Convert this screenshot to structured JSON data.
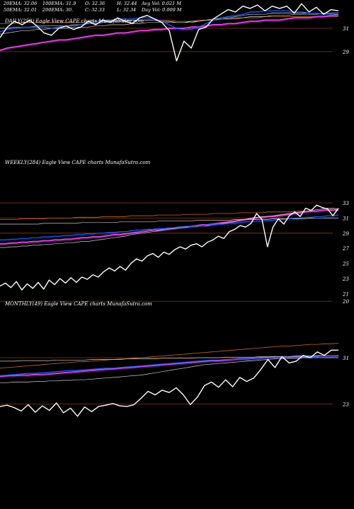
{
  "stats": {
    "row1": [
      "20EMA: 32.06",
      "100EMA: 31.9",
      "O: 32.36",
      "H: 32.44",
      "Avg Vol: 0.021 M"
    ],
    "row2": [
      "50EMA: 32.01",
      "200EMA: 30.",
      "C: 32.33",
      "L: 32.34",
      "Day Vol: 0.009 M"
    ]
  },
  "colors": {
    "background": "#000000",
    "price": "#ffffff",
    "ema_short": "#1f5fff",
    "ema_mid": "#cfcfcf",
    "ema_long": "#e040e0",
    "ema_orange": "#cc6a1a",
    "gridline": "#8a3a12"
  },
  "chart_data": [
    {
      "type": "line",
      "title": "DAILY(250) Eagle  View  CAPE charts MunafaSutra.com",
      "yticks": [
        31,
        29
      ],
      "gridlines": [
        31,
        29
      ],
      "series": [
        {
          "values": [
            30.2,
            31.1,
            31.6,
            31.3,
            31.7,
            31.2,
            30.6,
            30.4,
            31.0,
            31.2,
            30.9,
            31.1,
            31.6,
            31.3,
            31.7,
            31.5,
            31.9,
            31.6,
            31.4,
            31.9,
            32.1,
            31.8,
            31.5,
            30.8,
            28.2,
            29.9,
            29.3,
            30.9,
            31.1,
            31.8,
            32.2,
            32.6,
            32.4,
            32.9,
            32.7,
            33.0,
            32.5,
            32.9,
            32.7,
            32.9,
            32.3,
            33.1,
            32.4,
            32.8,
            32.2,
            32.6,
            32.5
          ]
        },
        {
          "values": [
            30.7,
            30.9,
            31.0,
            31.1,
            31.1,
            31.1,
            31.1,
            31.0,
            31.1,
            31.2,
            31.2,
            31.3,
            31.5,
            31.6,
            31.7,
            31.7,
            31.8,
            31.8,
            31.8,
            31.9,
            31.9,
            31.8,
            31.6,
            31.3,
            31.0,
            30.9,
            30.9,
            31.1,
            31.4,
            31.7,
            31.9,
            32.0,
            32.1,
            32.2,
            32.4,
            32.4,
            32.5,
            32.5,
            32.5,
            32.5,
            32.4,
            32.4,
            32.3,
            32.3,
            32.2,
            32.2,
            32.1
          ]
        },
        {
          "values": [
            31.0,
            31.0,
            31.1,
            31.1,
            31.1,
            31.2,
            31.2,
            31.2,
            31.2,
            31.2,
            31.3,
            31.3,
            31.4,
            31.4,
            31.5,
            31.6,
            31.6,
            31.6,
            31.7,
            31.7,
            31.7,
            31.7,
            31.6,
            31.6,
            31.5,
            31.5,
            31.5,
            31.6,
            31.7,
            31.8,
            31.9,
            31.9,
            32.0,
            32.1,
            32.2,
            32.2,
            32.2,
            32.3,
            32.3,
            32.3,
            32.3,
            32.3,
            32.3,
            32.3,
            32.2,
            32.2,
            32.2
          ]
        },
        {
          "values": [
            31.4,
            31.4,
            31.4,
            31.5,
            31.5,
            31.5,
            31.5,
            31.5,
            31.5,
            31.5,
            31.5,
            31.5,
            31.6,
            31.6,
            31.6,
            31.6,
            31.7,
            31.7,
            31.7,
            31.7,
            31.7,
            31.7,
            31.7,
            31.7,
            31.6,
            31.6,
            31.6,
            31.7,
            31.7,
            31.7,
            31.8,
            31.8,
            31.8,
            31.9,
            31.9,
            31.9,
            32.0,
            32.0,
            32.0,
            32.0,
            32.0,
            32.0,
            32.0,
            32.0,
            32.0,
            32.0,
            32.0
          ]
        },
        {
          "values": [
            30.5,
            30.6,
            30.7,
            30.8,
            30.8,
            30.9,
            30.9,
            31.0,
            31.0,
            31.0,
            31.1,
            31.1,
            31.1,
            31.2,
            31.2,
            31.3,
            31.3,
            31.3,
            31.4,
            31.4,
            31.5,
            31.5,
            31.5,
            31.5,
            31.5,
            31.5,
            31.6,
            31.6,
            31.7,
            31.7,
            31.8,
            31.8,
            31.9,
            31.9,
            32.0,
            32.0,
            32.0,
            32.1,
            32.1,
            32.1,
            32.2,
            32.2,
            32.2,
            32.2,
            32.3,
            32.3,
            32.3
          ]
        },
        {
          "values": [
            29.1,
            29.3,
            29.4,
            29.5,
            29.6,
            29.7,
            29.8,
            29.9,
            30.0,
            30.0,
            30.1,
            30.2,
            30.3,
            30.4,
            30.4,
            30.5,
            30.6,
            30.6,
            30.7,
            30.8,
            30.8,
            30.9,
            30.9,
            31.0,
            31.0,
            31.0,
            31.1,
            31.1,
            31.2,
            31.3,
            31.3,
            31.4,
            31.4,
            31.5,
            31.6,
            31.6,
            31.7,
            31.7,
            31.7,
            31.8,
            31.9,
            31.9,
            31.9,
            32.0,
            32.0,
            32.1,
            32.1
          ]
        }
      ]
    },
    {
      "type": "line",
      "title": "WEEKLY(284) Eagle  View  CAPE charts MunafaSutra.com",
      "yticks": [
        33,
        31,
        29,
        27,
        25,
        23,
        21,
        20
      ],
      "gridlines": [
        33,
        31,
        29,
        20
      ],
      "series": [
        {
          "values": [
            22.0,
            22.4,
            21.8,
            22.6,
            21.5,
            22.3,
            21.7,
            22.5,
            21.6,
            22.8,
            22.2,
            23.0,
            22.4,
            23.1,
            22.5,
            23.2,
            22.9,
            23.5,
            23.2,
            23.9,
            24.4,
            24.0,
            24.6,
            24.1,
            25.0,
            25.6,
            25.3,
            26.0,
            26.3,
            25.8,
            26.5,
            26.2,
            26.8,
            27.2,
            26.9,
            27.4,
            27.6,
            27.2,
            27.8,
            28.1,
            28.6,
            28.3,
            29.2,
            29.5,
            30.0,
            29.8,
            30.3,
            31.6,
            30.8,
            27.2,
            29.8,
            30.9,
            30.2,
            31.3,
            31.8,
            31.2,
            32.3,
            32.0,
            32.7,
            32.4,
            32.2,
            31.3,
            32.3
          ]
        },
        {
          "values": [
            28.1,
            28.1,
            28.2,
            28.2,
            28.3,
            28.3,
            28.4,
            28.4,
            28.5,
            28.5,
            28.6,
            28.6,
            28.7,
            28.7,
            28.8,
            28.8,
            28.9,
            28.9,
            29.0,
            29.0,
            29.1,
            29.1,
            29.2,
            29.2,
            29.3,
            29.4,
            29.4,
            29.5,
            29.5,
            29.6,
            29.6,
            29.7,
            29.7,
            29.8,
            29.9,
            29.9,
            30.0,
            30.0,
            30.1,
            30.1,
            30.2,
            30.2,
            30.3,
            30.3,
            30.4,
            30.5,
            30.5,
            30.6,
            30.6,
            30.7,
            30.7,
            30.8,
            30.8,
            30.9,
            31.0,
            31.0,
            31.1,
            31.1,
            31.2,
            31.2,
            31.3,
            31.3,
            31.4
          ]
        },
        {
          "values": [
            30.2,
            30.2,
            30.2,
            30.2,
            30.2,
            30.2,
            30.2,
            30.2,
            30.3,
            30.3,
            30.3,
            30.3,
            30.3,
            30.3,
            30.3,
            30.4,
            30.4,
            30.4,
            30.4,
            30.4,
            30.4,
            30.4,
            30.5,
            30.5,
            30.5,
            30.5,
            30.5,
            30.5,
            30.5,
            30.6,
            30.6,
            30.6,
            30.6,
            30.6,
            30.6,
            30.6,
            30.7,
            30.7,
            30.7,
            30.7,
            30.7,
            30.7,
            30.7,
            30.8,
            30.8,
            30.8,
            30.8,
            30.8,
            30.8,
            30.8,
            30.9,
            30.9,
            30.9,
            30.9,
            30.9,
            30.9,
            30.9,
            31.0,
            31.0,
            31.0,
            31.0,
            31.0,
            31.0
          ]
        },
        {
          "values": [
            30.8,
            30.8,
            30.8,
            30.8,
            30.9,
            30.9,
            30.9,
            30.9,
            30.9,
            31.0,
            31.0,
            31.0,
            31.0,
            31.0,
            31.1,
            31.1,
            31.1,
            31.1,
            31.1,
            31.2,
            31.2,
            31.2,
            31.2,
            31.2,
            31.3,
            31.3,
            31.3,
            31.3,
            31.3,
            31.4,
            31.4,
            31.4,
            31.4,
            31.4,
            31.5,
            31.5,
            31.5,
            31.5,
            31.5,
            31.6,
            31.6,
            31.6,
            31.6,
            31.6,
            31.7,
            31.7,
            31.7,
            31.7,
            31.7,
            31.8,
            31.8,
            31.8,
            31.8,
            31.8,
            31.9,
            31.9,
            31.9,
            31.9,
            31.9,
            32.0,
            32.0,
            32.0,
            32.0
          ]
        },
        {
          "values": [
            27.1,
            27.1,
            27.2,
            27.2,
            27.3,
            27.3,
            27.4,
            27.4,
            27.5,
            27.5,
            27.6,
            27.6,
            27.7,
            27.7,
            27.8,
            27.9,
            27.9,
            28.0,
            28.1,
            28.2,
            28.3,
            28.4,
            28.5,
            28.6,
            28.8,
            28.9,
            29.0,
            29.1,
            29.2,
            29.3,
            29.4,
            29.5,
            29.6,
            29.7,
            29.8,
            29.9,
            29.9,
            30.0,
            30.0,
            30.1,
            30.2,
            30.3,
            30.4,
            30.5,
            30.7,
            30.8,
            31.0,
            31.1,
            31.2,
            31.2,
            31.3,
            31.4,
            31.5,
            31.6,
            31.7,
            31.8,
            31.9,
            32.0,
            32.1,
            32.2,
            32.3,
            32.3,
            32.2
          ]
        },
        {
          "values": [
            27.6,
            27.6,
            27.7,
            27.7,
            27.8,
            27.8,
            27.9,
            27.9,
            28.0,
            28.0,
            28.1,
            28.1,
            28.2,
            28.2,
            28.3,
            28.4,
            28.4,
            28.5,
            28.5,
            28.6,
            28.7,
            28.8,
            28.8,
            28.9,
            29.0,
            29.1,
            29.2,
            29.3,
            29.4,
            29.4,
            29.5,
            29.6,
            29.7,
            29.8,
            29.8,
            29.9,
            30.0,
            30.1,
            30.1,
            30.2,
            30.3,
            30.4,
            30.5,
            30.6,
            30.7,
            30.8,
            30.9,
            31.0,
            31.1,
            31.2,
            31.2,
            31.3,
            31.4,
            31.5,
            31.6,
            31.7,
            31.8,
            31.9,
            31.9,
            32.0,
            32.1,
            32.1,
            32.1
          ]
        }
      ]
    },
    {
      "type": "line",
      "title": "MONTHLY(49) Eagle  View  CAPE charts MunafaSutra.com",
      "yticks": [
        31,
        23
      ],
      "gridlines": [
        31,
        23
      ],
      "series": [
        {
          "values": [
            22.6,
            22.8,
            22.4,
            21.8,
            22.9,
            21.6,
            22.7,
            21.9,
            23.2,
            21.5,
            22.3,
            20.9,
            22.5,
            21.7,
            22.6,
            22.8,
            23.1,
            22.7,
            22.6,
            22.9,
            24.0,
            25.2,
            24.6,
            25.4,
            25.0,
            25.8,
            24.6,
            22.9,
            24.2,
            26.2,
            26.8,
            25.9,
            27.2,
            26.0,
            27.6,
            26.9,
            27.5,
            29.0,
            30.7,
            29.3,
            31.2,
            30.1,
            30.4,
            31.4,
            31.0,
            32.0,
            31.4,
            32.3,
            32.3
          ]
        },
        {
          "values": [
            27.9,
            28.0,
            28.1,
            28.2,
            28.3,
            28.3,
            28.4,
            28.5,
            28.6,
            28.7,
            28.8,
            28.8,
            28.9,
            29.0,
            29.1,
            29.2,
            29.2,
            29.3,
            29.4,
            29.5,
            29.6,
            29.7,
            29.8,
            29.9,
            30.0,
            30.1,
            30.2,
            30.3,
            30.4,
            30.5,
            30.6,
            30.6,
            30.7,
            30.7,
            30.8,
            30.8,
            30.9,
            30.9,
            31.0,
            31.0,
            31.1,
            31.1,
            31.1,
            31.2,
            31.2,
            31.2,
            31.3,
            31.3,
            31.3
          ]
        },
        {
          "values": [
            30.4,
            30.4,
            30.4,
            30.5,
            30.5,
            30.5,
            30.5,
            30.5,
            30.6,
            30.6,
            30.6,
            30.6,
            30.6,
            30.7,
            30.7,
            30.7,
            30.7,
            30.7,
            30.8,
            30.8,
            30.8,
            30.8,
            30.8,
            30.9,
            30.9,
            30.9,
            30.9,
            30.9,
            31.0,
            31.0,
            31.0,
            31.0,
            31.1,
            31.1,
            31.1,
            31.1,
            31.1,
            31.2,
            31.2,
            31.2,
            31.2,
            31.2,
            31.3,
            31.3,
            31.3,
            31.3,
            31.3,
            31.3,
            31.4
          ]
        },
        {
          "values": [
            29.2,
            29.3,
            29.4,
            29.5,
            29.6,
            29.7,
            29.8,
            29.9,
            30.0,
            30.1,
            30.2,
            30.3,
            30.3,
            30.4,
            30.5,
            30.6,
            30.7,
            30.8,
            30.8,
            30.9,
            31.0,
            31.1,
            31.2,
            31.3,
            31.4,
            31.5,
            31.6,
            31.7,
            31.8,
            31.9,
            32.0,
            32.1,
            32.2,
            32.3,
            32.4,
            32.5,
            32.6,
            32.7,
            32.8,
            32.9,
            33.0,
            33.0,
            33.1,
            33.2,
            33.3,
            33.3,
            33.4,
            33.4,
            33.5
          ]
        },
        {
          "values": [
            26.7,
            26.7,
            26.8,
            26.8,
            26.8,
            26.9,
            26.9,
            27.0,
            27.0,
            27.1,
            27.1,
            27.2,
            27.2,
            27.3,
            27.4,
            27.5,
            27.6,
            27.7,
            27.8,
            27.9,
            28.0,
            28.2,
            28.4,
            28.6,
            28.8,
            29.0,
            29.2,
            29.4,
            29.6,
            29.8,
            29.9,
            30.0,
            30.1,
            30.2,
            30.3,
            30.4,
            30.5,
            30.6,
            30.7,
            30.8,
            30.8,
            30.9,
            30.9,
            31.0,
            31.0,
            31.0,
            31.0,
            31.0,
            31.0
          ]
        },
        {
          "values": [
            27.8,
            27.9,
            27.9,
            28.0,
            28.0,
            28.1,
            28.1,
            28.2,
            28.3,
            28.4,
            28.5,
            28.6,
            28.7,
            28.8,
            28.9,
            29.0,
            29.1,
            29.2,
            29.3,
            29.4,
            29.5,
            29.6,
            29.7,
            29.8,
            29.9,
            30.0,
            30.1,
            30.2,
            30.3,
            30.4,
            30.5,
            30.5,
            30.6,
            30.7,
            30.8,
            30.8,
            30.9,
            31.0,
            31.0,
            31.1,
            31.1,
            31.1,
            31.2,
            31.2,
            31.2,
            31.3,
            31.3,
            31.3,
            31.3
          ]
        }
      ]
    }
  ]
}
